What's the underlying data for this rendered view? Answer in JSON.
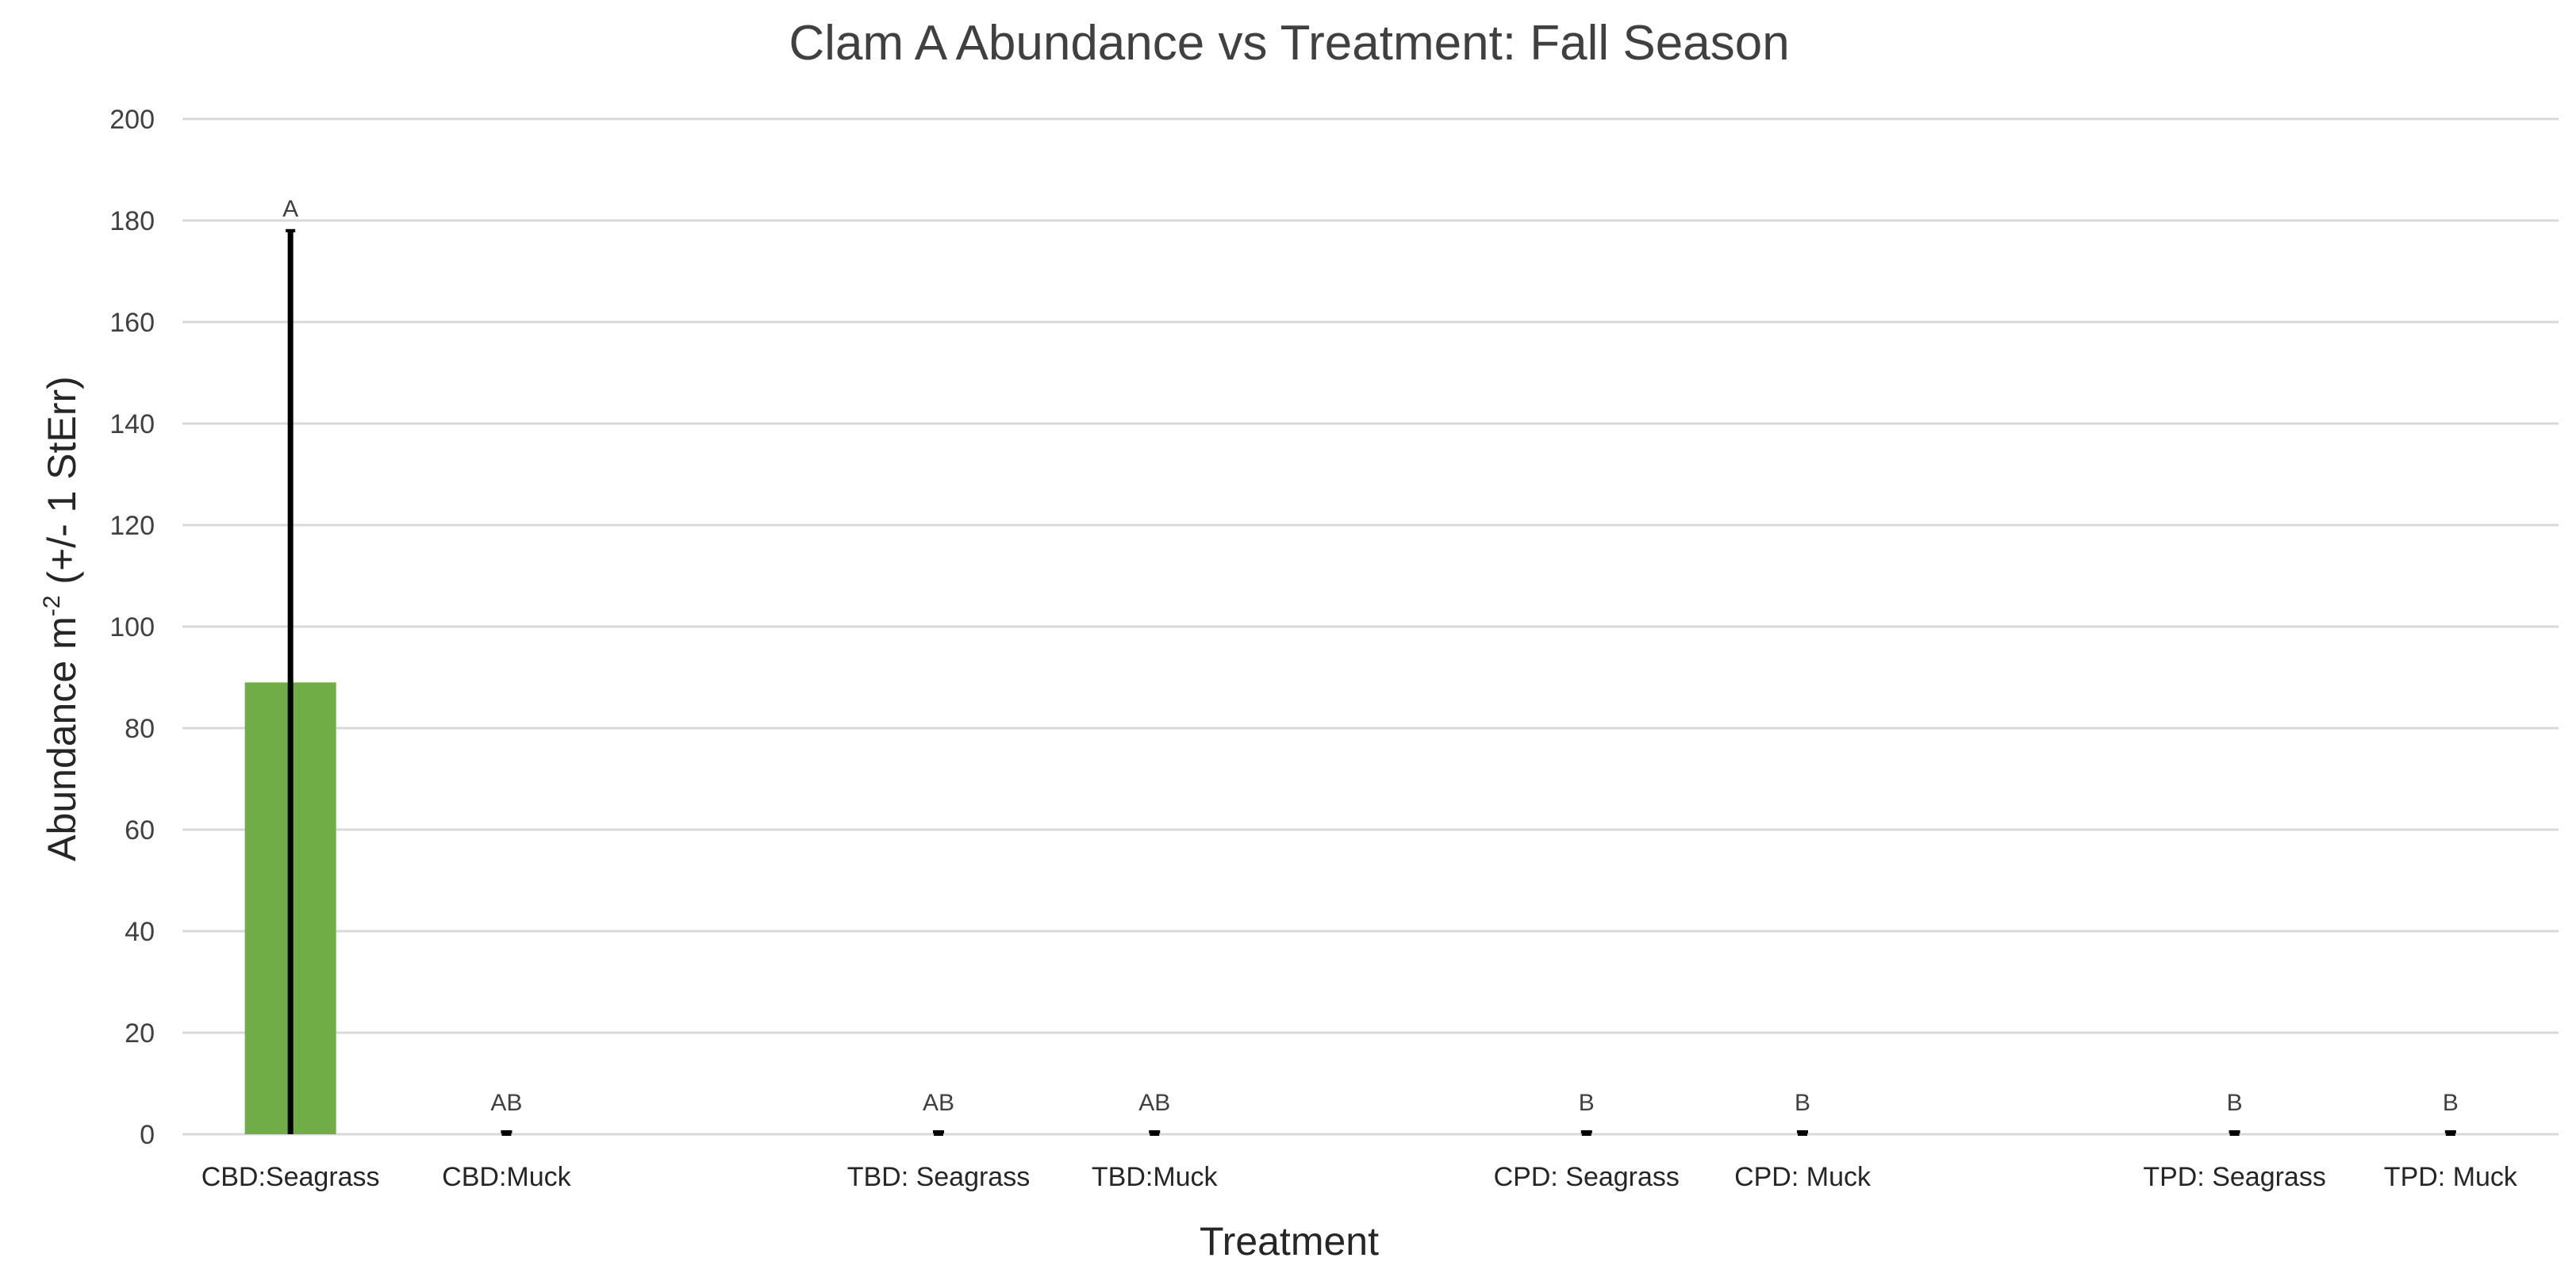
{
  "chart_data": {
    "type": "bar",
    "title": "Clam A Abundance vs Treatment: Fall Season",
    "xlabel": "Treatment",
    "ylabel_main": "Abundance m",
    "ylabel_sup": "-2",
    "ylabel_tail": " (+/- 1 StErr)",
    "categories": [
      "CBD:Seagrass",
      "CBD:Muck",
      "TBD: Seagrass",
      "TBD:Muck",
      "CPD: Seagrass",
      "CPD: Muck",
      "TPD: Seagrass",
      "TPD: Muck"
    ],
    "values": [
      89,
      0,
      0,
      0,
      0,
      0,
      0,
      0
    ],
    "errors": [
      89,
      0,
      0,
      0,
      0,
      0,
      0,
      0
    ],
    "significance_letters": [
      "A",
      "AB",
      "AB",
      "AB",
      "B",
      "B",
      "B",
      "B"
    ],
    "ylim": [
      0,
      200
    ],
    "yticks": [
      0,
      20,
      40,
      60,
      80,
      100,
      120,
      140,
      160,
      180,
      200
    ],
    "grid": true,
    "bar_color": "#70ad47",
    "error_bar_color": "#000000"
  }
}
